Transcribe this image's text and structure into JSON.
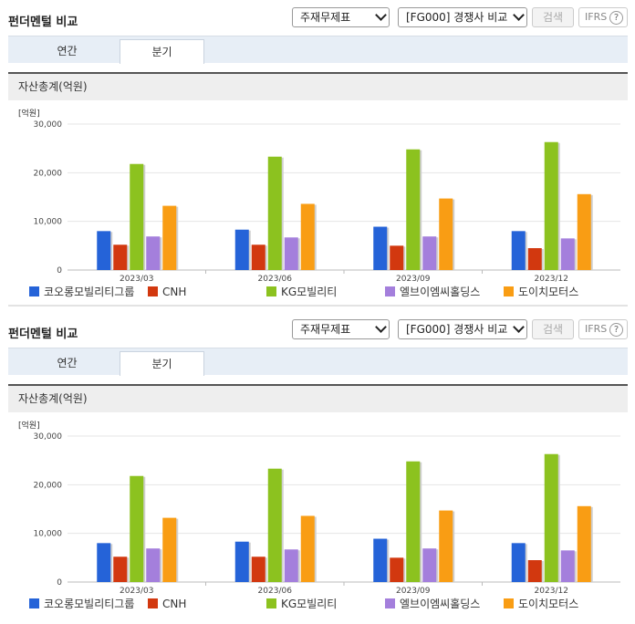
{
  "header": {
    "title": "펀더멘털 비교",
    "statement_select": "주재무제표",
    "compare_select": "[FG000] 경쟁사 비교",
    "search_label": "검색",
    "ifrs_label": "IFRS",
    "help_glyph": "?"
  },
  "tabs": [
    {
      "label": "연간",
      "active": false
    },
    {
      "label": "분기",
      "active": true
    }
  ],
  "section_title": "자산총계(억원)",
  "unit_label": "[억원]",
  "colors": {
    "코오롱모빌리티그룹": "#2563d8",
    "CNH": "#d2380f",
    "KG모빌리티": "#8cc21f",
    "엘브이엠씨홀딩스": "#a47fdc",
    "도이치모터스": "#f99d14"
  },
  "chart_data": [
    {
      "type": "bar",
      "title": "자산총계(억원)",
      "categories": [
        "2023/03",
        "2023/06",
        "2023/09",
        "2023/12"
      ],
      "ylim": [
        0,
        30000
      ],
      "yticks": [
        "0",
        "10,000",
        "20,000",
        "30,000"
      ],
      "grid": true,
      "legend_position": "bottom",
      "series": [
        {
          "name": "코오롱모빌리티그룹",
          "values": [
            8000,
            8300,
            8900,
            8000
          ]
        },
        {
          "name": "CNH",
          "values": [
            5200,
            5200,
            5000,
            4500
          ]
        },
        {
          "name": "KG모빌리티",
          "values": [
            21800,
            23300,
            24800,
            26300
          ]
        },
        {
          "name": "엘브이엠씨홀딩스",
          "values": [
            6900,
            6700,
            6900,
            6500
          ]
        },
        {
          "name": "도이치모터스",
          "values": [
            13200,
            13600,
            14700,
            15600
          ]
        }
      ]
    },
    {
      "type": "bar",
      "title": "자산총계(억원)",
      "categories": [
        "2023/03",
        "2023/06",
        "2023/09",
        "2023/12"
      ],
      "ylim": [
        0,
        30000
      ],
      "yticks": [
        "0",
        "10,000",
        "20,000",
        "30,000"
      ],
      "grid": true,
      "legend_position": "bottom",
      "series": [
        {
          "name": "코오롱모빌리티그룹",
          "values": [
            8000,
            8300,
            8900,
            8000
          ]
        },
        {
          "name": "CNH",
          "values": [
            5200,
            5200,
            5000,
            4500
          ]
        },
        {
          "name": "KG모빌리티",
          "values": [
            21800,
            23300,
            24800,
            26300
          ]
        },
        {
          "name": "엘브이엠씨홀딩스",
          "values": [
            6900,
            6700,
            6900,
            6500
          ]
        },
        {
          "name": "도이치모터스",
          "values": [
            13200,
            13600,
            14700,
            15600
          ]
        }
      ]
    }
  ]
}
